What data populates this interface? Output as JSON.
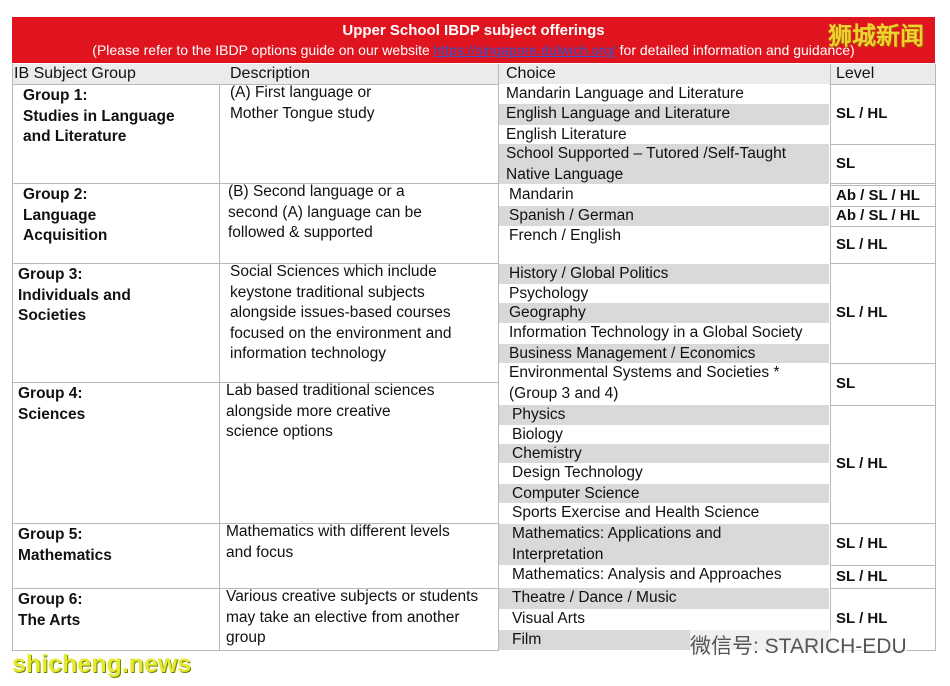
{
  "header": {
    "title": "Upper School IBDP subject offerings",
    "subtitle_prefix": "(Please refer to the IBDP options guide on our website",
    "link": "https://singapore.dulwich.org/",
    "subtitle_suffix": "for detailed information and guidance)"
  },
  "table": {
    "headers": [
      "IB Subject Group",
      "Description",
      "Choice",
      "Level"
    ],
    "groups": [
      {
        "name": [
          "Group 1:",
          "Studies in Language",
          "and Literature"
        ],
        "description": [
          "(A) First language or",
          "Mother Tongue study"
        ]
      },
      {
        "name": [
          "Group 2:",
          "Language",
          "Acquisition"
        ],
        "description": [
          "(B) Second language or a",
          "second (A) language can be",
          "followed & supported"
        ]
      },
      {
        "name": [
          "Group 3:",
          "Individuals and",
          "Societies"
        ],
        "description": [
          "Social Sciences which include",
          "keystone traditional subjects",
          "alongside issues-based courses",
          "focused on the environment and",
          "information technology"
        ]
      },
      {
        "name": [
          "Group 4:",
          "Sciences"
        ],
        "description": [
          "Lab based traditional sciences",
          "alongside more creative",
          "science options"
        ]
      },
      {
        "name": [
          "Group 5:",
          "Mathematics"
        ],
        "description": [
          "Mathematics with different levels",
          "and focus"
        ]
      },
      {
        "name": [
          "Group 6:",
          "The Arts"
        ],
        "description": [
          "Various creative subjects or students",
          "may take an elective from another",
          "group"
        ]
      }
    ],
    "choices": [
      [
        "Mandarin Language and Literature"
      ],
      [
        "English Language and Literature"
      ],
      [
        "English Literature"
      ],
      [
        "School Supported – Tutored /Self-Taught",
        "Native Language"
      ],
      [
        "Mandarin"
      ],
      [
        "Spanish  / German"
      ],
      [
        "French / English"
      ],
      [
        "History / Global Politics"
      ],
      [
        "Psychology"
      ],
      [
        "Geography"
      ],
      [
        "Information Technology in a Global Society"
      ],
      [
        "Business Management / Economics"
      ],
      [
        "Environmental Systems and Societies *",
        "(Group 3 and 4)"
      ],
      [
        "Physics"
      ],
      [
        "Biology"
      ],
      [
        "Chemistry"
      ],
      [
        "Design Technology"
      ],
      [
        "Computer Science"
      ],
      [
        "Sports Exercise and Health Science"
      ],
      [
        "Mathematics: Applications and",
        "Interpretation"
      ],
      [
        "Mathematics: Analysis and Approaches"
      ],
      [
        "Theatre / Dance / Music"
      ],
      [
        "Visual Arts"
      ],
      [
        "Film"
      ]
    ],
    "levels": [
      "SL / HL",
      "SL",
      "Ab / SL / HL",
      "Ab / SL / HL",
      "SL / HL",
      "SL / HL",
      "SL",
      "SL / HL",
      "SL / HL",
      "SL / HL",
      "SL / HL"
    ]
  },
  "watermarks": {
    "top_right": "狮城新闻",
    "bottom_left": "shicheng.news",
    "bottom_right": "微信号: STARICH-EDU"
  }
}
